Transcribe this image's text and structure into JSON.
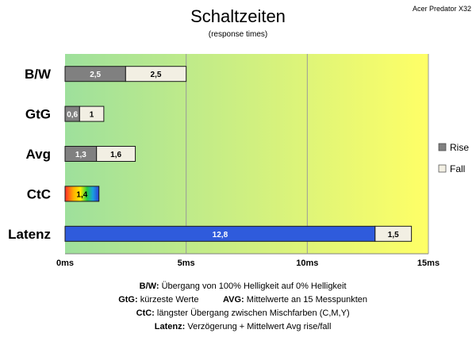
{
  "chart_data": {
    "type": "bar",
    "orientation": "horizontal",
    "stacked": true,
    "title": "Schaltzeiten",
    "subtitle": "(response times)",
    "corner_label": "Acer Predator X32",
    "categories": [
      "B/W",
      "GtG",
      "Avg",
      "CtC",
      "Latenz"
    ],
    "series": [
      {
        "name": "Rise",
        "values": [
          2.5,
          0.6,
          1.3,
          1.4,
          12.8
        ],
        "labels": [
          "2,5",
          "0,6",
          "1,3",
          "1,4",
          "12,8"
        ]
      },
      {
        "name": "Fall",
        "values": [
          2.5,
          1.0,
          1.6,
          null,
          1.5
        ],
        "labels": [
          "2,5",
          "1",
          "1,6",
          "",
          "1,5"
        ]
      }
    ],
    "special_fills": {
      "CtC": "rainbow",
      "Latenz": "#2f5bdc"
    },
    "xlim": [
      0,
      15
    ],
    "xticks": [
      0,
      5,
      10,
      15
    ],
    "xtick_labels": [
      "0ms",
      "5ms",
      "10ms",
      "15ms"
    ],
    "legend_position": "right",
    "background_gradient": [
      "#9ee09c",
      "#ffff66"
    ],
    "colors": {
      "rise": "#808080",
      "fall": "#f2efe3",
      "latenz": "#2f5bdc",
      "grid": "#9a9a9a"
    }
  },
  "footnotes": [
    {
      "key": "B/W:",
      "text": " Übergang von 100% Helligkeit auf 0% Helligkeit"
    },
    {
      "key": "GtG:",
      "text": " kürzeste Werte",
      "key2": "AVG:",
      "text2": " Mittelwerte an 15 Messpunkten"
    },
    {
      "key": "CtC:",
      "text": " längster Übergang zwischen Mischfarben (C,M,Y)"
    },
    {
      "key": "Latenz:",
      "text": " Verzögerung + Mittelwert Avg rise/fall"
    }
  ]
}
